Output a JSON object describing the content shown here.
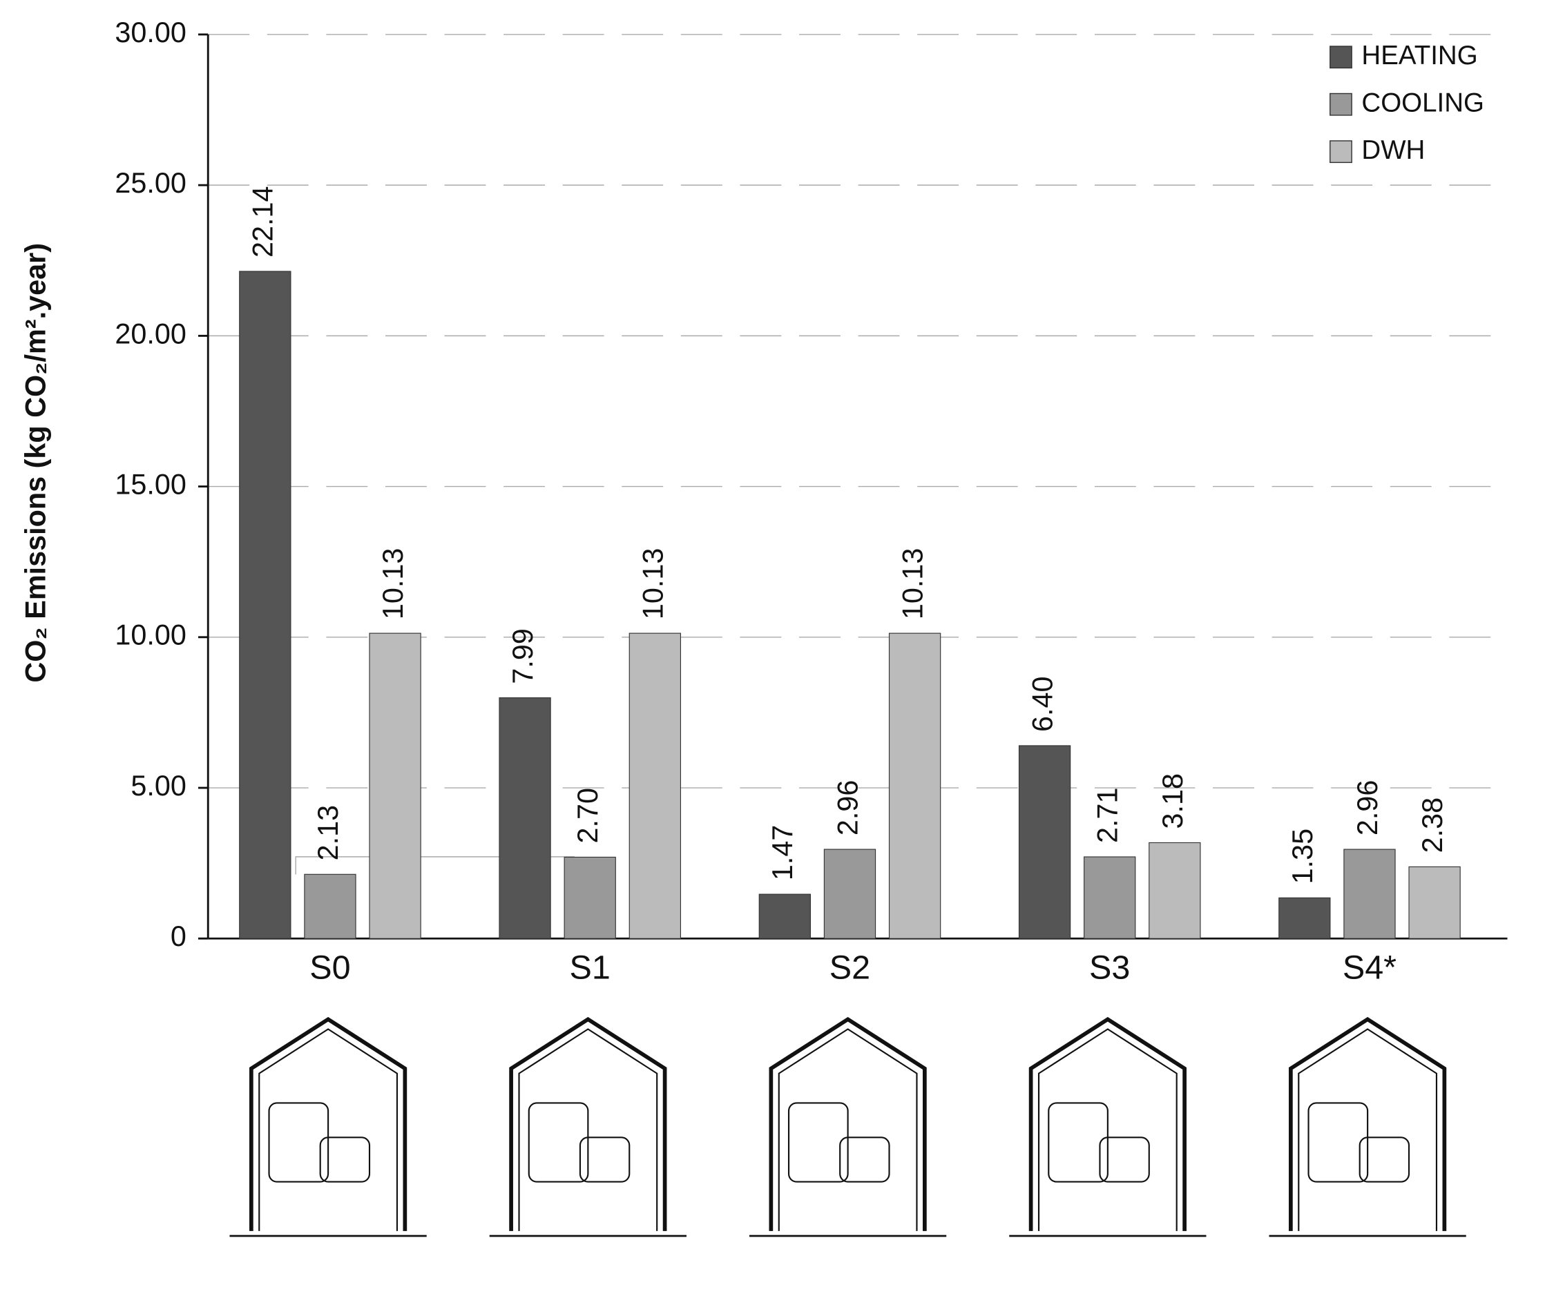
{
  "chart_data": {
    "type": "bar",
    "y_label": "CO₂ Emissions (kg CO₂/m².year)",
    "categories": [
      "S0",
      "S1",
      "S2",
      "S3",
      "S4*"
    ],
    "series": [
      {
        "name": "HEATING",
        "color": "#555555",
        "values": [
          22.14,
          7.99,
          1.47,
          6.4,
          1.35
        ],
        "value_labels": [
          "22.14",
          "7.99",
          "1.47",
          "6.40",
          "1.35"
        ]
      },
      {
        "name": "COOLING",
        "color": "#999999",
        "values": [
          2.13,
          2.7,
          2.96,
          2.71,
          2.96
        ],
        "value_labels": [
          "2.13",
          "2.70",
          "2.96",
          "2.71",
          "2.96"
        ]
      },
      {
        "name": "DWH",
        "color": "#bbbbbb",
        "values": [
          10.13,
          10.13,
          10.13,
          3.18,
          2.38
        ],
        "value_labels": [
          "10.13",
          "10.13",
          "10.13",
          "3.18",
          "2.38"
        ]
      }
    ],
    "ylim": [
      0,
      30
    ],
    "yticks": [
      0,
      {
        "value": 5,
        "label": "5.00"
      },
      {
        "value": 10,
        "label": "10.00"
      },
      {
        "value": 15,
        "label": "15.00"
      },
      {
        "value": 20,
        "label": "20.00"
      },
      {
        "value": 25,
        "label": "25.00"
      },
      {
        "value": 30,
        "label": "30.00"
      }
    ],
    "grid": true,
    "legend": "upper right"
  }
}
